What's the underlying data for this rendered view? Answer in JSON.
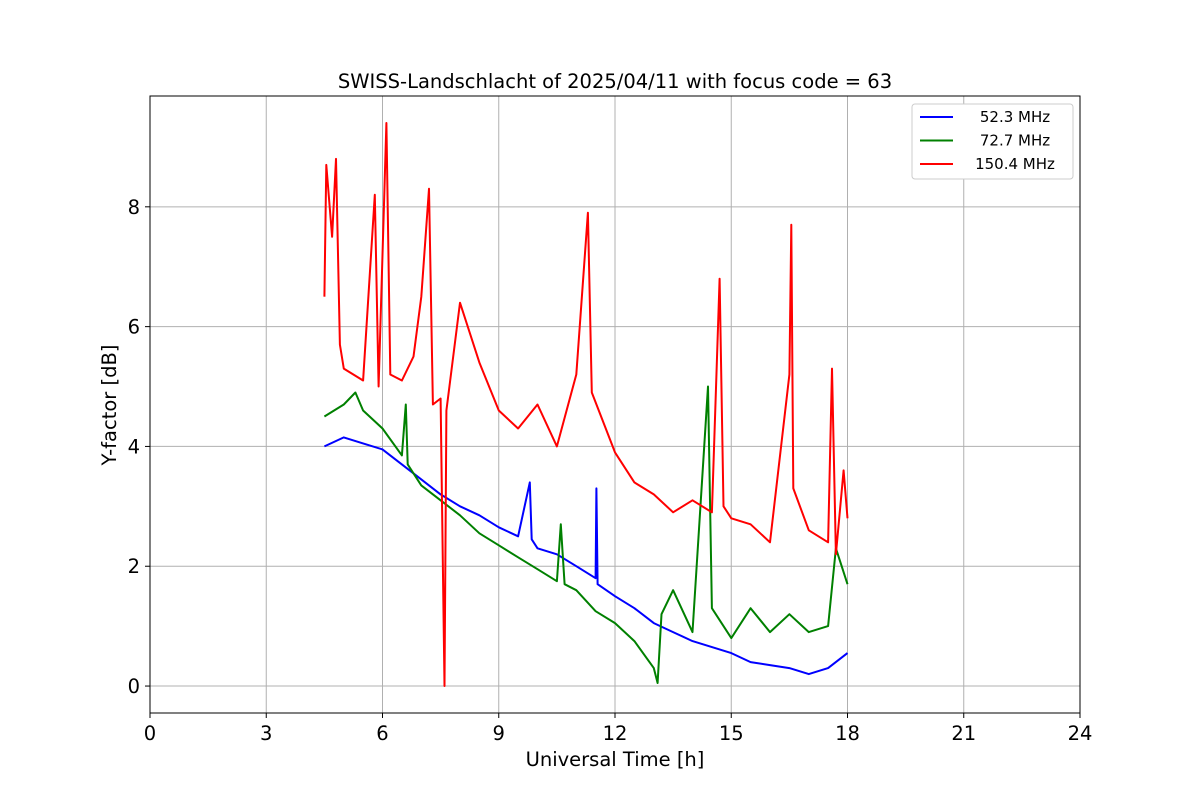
{
  "chart_data": {
    "type": "line",
    "title": "SWISS-Landschlacht of 2025/04/11 with focus code = 63",
    "xlabel": "Universal Time [h]",
    "ylabel": "Y-factor [dB]",
    "xlim": [
      0,
      24
    ],
    "ylim": [
      -0.45,
      9.85
    ],
    "xticks": [
      0,
      3,
      6,
      9,
      12,
      15,
      18,
      21,
      24
    ],
    "xtick_labels": [
      "0",
      "3",
      "6",
      "9",
      "12",
      "15",
      "18",
      "21",
      "24"
    ],
    "yticks": [
      0,
      2,
      4,
      6,
      8
    ],
    "ytick_labels": [
      "0",
      "2",
      "4",
      "6",
      "8"
    ],
    "grid": true,
    "legend_position": "top-right",
    "series": [
      {
        "name": "52.3 MHz",
        "color": "#0000ff",
        "points": [
          [
            4.5,
            4.0
          ],
          [
            5.0,
            4.15
          ],
          [
            5.5,
            4.05
          ],
          [
            6.0,
            3.95
          ],
          [
            6.5,
            3.7
          ],
          [
            7.0,
            3.45
          ],
          [
            7.5,
            3.2
          ],
          [
            8.0,
            3.0
          ],
          [
            8.5,
            2.85
          ],
          [
            9.0,
            2.65
          ],
          [
            9.5,
            2.5
          ],
          [
            9.8,
            3.4
          ],
          [
            9.85,
            2.45
          ],
          [
            10.0,
            2.3
          ],
          [
            10.5,
            2.2
          ],
          [
            11.0,
            2.0
          ],
          [
            11.5,
            1.8
          ],
          [
            11.52,
            3.3
          ],
          [
            11.55,
            1.7
          ],
          [
            12.0,
            1.5
          ],
          [
            12.5,
            1.3
          ],
          [
            13.0,
            1.05
          ],
          [
            13.5,
            0.9
          ],
          [
            14.0,
            0.75
          ],
          [
            14.5,
            0.65
          ],
          [
            15.0,
            0.55
          ],
          [
            15.5,
            0.4
          ],
          [
            16.0,
            0.35
          ],
          [
            16.5,
            0.3
          ],
          [
            17.0,
            0.2
          ],
          [
            17.5,
            0.3
          ],
          [
            17.9,
            0.5
          ],
          [
            18.0,
            0.55
          ]
        ]
      },
      {
        "name": "72.7 MHz",
        "color": "#008000",
        "points": [
          [
            4.5,
            4.5
          ],
          [
            5.0,
            4.7
          ],
          [
            5.3,
            4.9
          ],
          [
            5.5,
            4.6
          ],
          [
            6.0,
            4.3
          ],
          [
            6.5,
            3.85
          ],
          [
            6.6,
            4.7
          ],
          [
            6.65,
            3.7
          ],
          [
            7.0,
            3.35
          ],
          [
            7.5,
            3.1
          ],
          [
            8.0,
            2.85
          ],
          [
            8.5,
            2.55
          ],
          [
            9.0,
            2.35
          ],
          [
            9.5,
            2.15
          ],
          [
            10.0,
            1.95
          ],
          [
            10.5,
            1.75
          ],
          [
            10.6,
            2.7
          ],
          [
            10.7,
            1.7
          ],
          [
            11.0,
            1.6
          ],
          [
            11.5,
            1.25
          ],
          [
            12.0,
            1.05
          ],
          [
            12.5,
            0.75
          ],
          [
            13.0,
            0.3
          ],
          [
            13.1,
            0.05
          ],
          [
            13.2,
            1.2
          ],
          [
            13.5,
            1.6
          ],
          [
            14.0,
            0.9
          ],
          [
            14.4,
            5.0
          ],
          [
            14.5,
            1.3
          ],
          [
            15.0,
            0.8
          ],
          [
            15.5,
            1.3
          ],
          [
            16.0,
            0.9
          ],
          [
            16.5,
            1.2
          ],
          [
            17.0,
            0.9
          ],
          [
            17.5,
            1.0
          ],
          [
            17.7,
            2.3
          ],
          [
            18.0,
            1.7
          ]
        ]
      },
      {
        "name": "150.4 MHz",
        "color": "#ff0000",
        "points": [
          [
            4.5,
            6.5
          ],
          [
            4.55,
            8.7
          ],
          [
            4.7,
            7.5
          ],
          [
            4.8,
            8.8
          ],
          [
            4.9,
            5.7
          ],
          [
            5.0,
            5.3
          ],
          [
            5.5,
            5.1
          ],
          [
            5.8,
            8.2
          ],
          [
            5.9,
            5.0
          ],
          [
            6.1,
            9.4
          ],
          [
            6.2,
            5.2
          ],
          [
            6.5,
            5.1
          ],
          [
            6.8,
            5.5
          ],
          [
            7.0,
            6.5
          ],
          [
            7.2,
            8.3
          ],
          [
            7.3,
            4.7
          ],
          [
            7.5,
            4.8
          ],
          [
            7.6,
            0.0
          ],
          [
            7.65,
            4.6
          ],
          [
            8.0,
            6.4
          ],
          [
            8.5,
            5.4
          ],
          [
            9.0,
            4.6
          ],
          [
            9.5,
            4.3
          ],
          [
            10.0,
            4.7
          ],
          [
            10.5,
            4.0
          ],
          [
            11.0,
            5.2
          ],
          [
            11.3,
            7.9
          ],
          [
            11.4,
            4.9
          ],
          [
            12.0,
            3.9
          ],
          [
            12.5,
            3.4
          ],
          [
            13.0,
            3.2
          ],
          [
            13.5,
            2.9
          ],
          [
            14.0,
            3.1
          ],
          [
            14.5,
            2.9
          ],
          [
            14.7,
            6.8
          ],
          [
            14.8,
            3.0
          ],
          [
            15.0,
            2.8
          ],
          [
            15.5,
            2.7
          ],
          [
            16.0,
            2.4
          ],
          [
            16.5,
            5.2
          ],
          [
            16.55,
            7.7
          ],
          [
            16.6,
            3.3
          ],
          [
            17.0,
            2.6
          ],
          [
            17.5,
            2.4
          ],
          [
            17.6,
            5.3
          ],
          [
            17.7,
            2.2
          ],
          [
            17.9,
            3.6
          ],
          [
            18.0,
            2.8
          ]
        ]
      }
    ]
  }
}
